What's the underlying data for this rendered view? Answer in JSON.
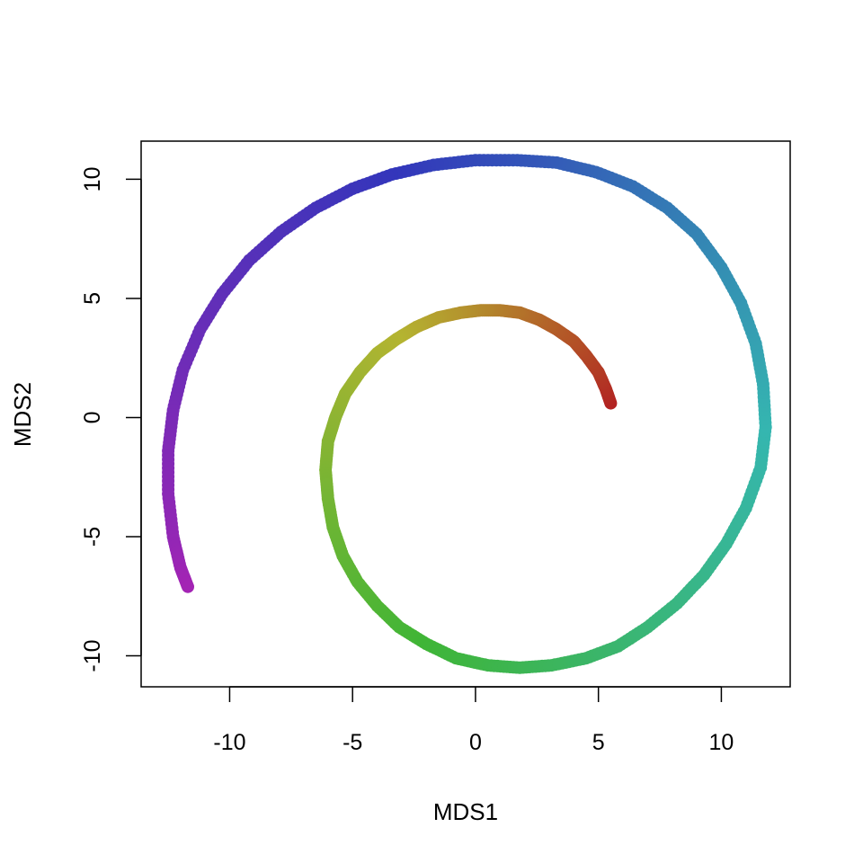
{
  "chart_data": {
    "type": "scatter",
    "title": "",
    "xlabel": "MDS1",
    "ylabel": "MDS2",
    "xlim": [
      -13.6,
      12.8
    ],
    "ylim": [
      -11.3,
      11.6
    ],
    "xticks": [
      -10,
      -5,
      0,
      5,
      10
    ],
    "yticks": [
      -10,
      -5,
      0,
      5,
      10
    ],
    "xtick_labels": [
      "-10",
      "-5",
      "0",
      "5",
      "10"
    ],
    "ytick_labels": [
      "-10",
      "-5",
      "0",
      "5",
      "10"
    ],
    "grid": false,
    "legend": "none",
    "color_gradient": [
      "#b22222",
      "#b4b431",
      "#3fb536",
      "#35b6b0",
      "#3336bb",
      "#a324b4"
    ],
    "point_color": "hue gradient along curve (red at center, green, cyan, blue, purple at outer end)",
    "series": [
      {
        "points": [
          [
            5.5,
            0.6
          ],
          [
            5.3,
            1.2
          ],
          [
            5.0,
            1.9
          ],
          [
            4.5,
            2.6
          ],
          [
            4.0,
            3.2
          ],
          [
            3.3,
            3.7
          ],
          [
            2.6,
            4.1
          ],
          [
            1.8,
            4.4
          ],
          [
            1.0,
            4.5
          ],
          [
            0.2,
            4.5
          ],
          [
            -0.6,
            4.4
          ],
          [
            -1.5,
            4.2
          ],
          [
            -2.4,
            3.8
          ],
          [
            -3.2,
            3.3
          ],
          [
            -4.0,
            2.7
          ],
          [
            -4.7,
            1.9
          ],
          [
            -5.3,
            1.0
          ],
          [
            -5.7,
            0.0
          ],
          [
            -6.0,
            -1.0
          ],
          [
            -6.1,
            -2.2
          ],
          [
            -6.0,
            -3.4
          ],
          [
            -5.8,
            -4.6
          ],
          [
            -5.4,
            -5.8
          ],
          [
            -4.8,
            -6.9
          ],
          [
            -4.0,
            -7.9
          ],
          [
            -3.1,
            -8.8
          ],
          [
            -2.0,
            -9.5
          ],
          [
            -0.8,
            -10.1
          ],
          [
            0.5,
            -10.4
          ],
          [
            1.8,
            -10.5
          ],
          [
            3.1,
            -10.4
          ],
          [
            4.5,
            -10.1
          ],
          [
            5.8,
            -9.6
          ],
          [
            7.0,
            -8.8
          ],
          [
            8.2,
            -7.8
          ],
          [
            9.3,
            -6.6
          ],
          [
            10.2,
            -5.3
          ],
          [
            11.0,
            -3.8
          ],
          [
            11.6,
            -2.1
          ],
          [
            11.8,
            -0.4
          ],
          [
            11.7,
            1.4
          ],
          [
            11.4,
            3.1
          ],
          [
            10.8,
            4.8
          ],
          [
            10.0,
            6.3
          ],
          [
            9.0,
            7.7
          ],
          [
            7.8,
            8.8
          ],
          [
            6.4,
            9.7
          ],
          [
            4.9,
            10.3
          ],
          [
            3.3,
            10.7
          ],
          [
            1.7,
            10.8
          ],
          [
            0.0,
            10.8
          ],
          [
            -1.7,
            10.6
          ],
          [
            -3.4,
            10.2
          ],
          [
            -5.0,
            9.6
          ],
          [
            -6.5,
            8.8
          ],
          [
            -7.9,
            7.8
          ],
          [
            -9.2,
            6.6
          ],
          [
            -10.3,
            5.2
          ],
          [
            -11.2,
            3.7
          ],
          [
            -11.9,
            2.0
          ],
          [
            -12.3,
            0.3
          ],
          [
            -12.5,
            -1.4
          ],
          [
            -12.5,
            -3.2
          ],
          [
            -12.3,
            -5.0
          ],
          [
            -12.0,
            -6.3
          ],
          [
            -11.7,
            -7.1
          ]
        ]
      }
    ]
  }
}
